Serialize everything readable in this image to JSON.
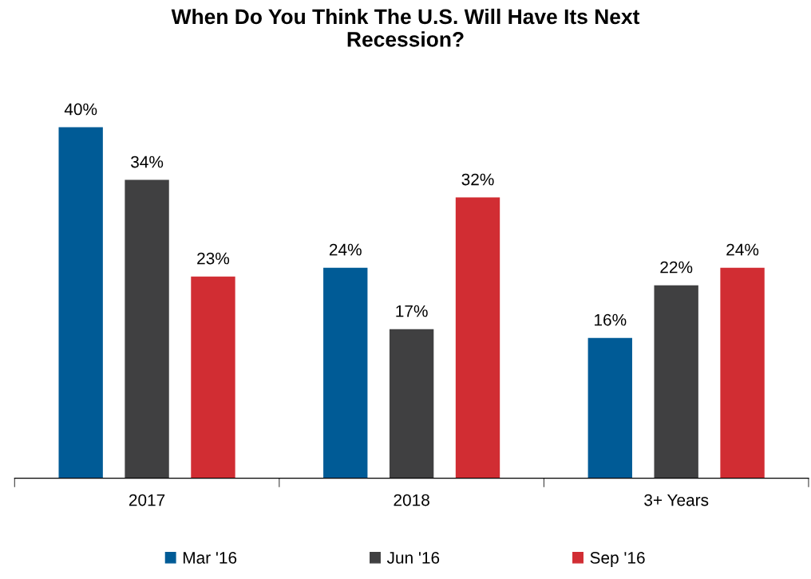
{
  "chart_data": {
    "type": "bar",
    "title": "When Do You Think The U.S. Will Have Its Next Recession?",
    "categories": [
      "2017",
      "2018",
      "3+ Years"
    ],
    "series": [
      {
        "name": "Mar '16",
        "color": "#005b96",
        "values": [
          40,
          24,
          16
        ],
        "value_labels": [
          "40%",
          "24%",
          "16%"
        ]
      },
      {
        "name": "Jun '16",
        "color": "#404041",
        "values": [
          34,
          17,
          22
        ],
        "value_labels": [
          "34%",
          "17%",
          "22%"
        ]
      },
      {
        "name": "Sep '16",
        "color": "#d12d33",
        "values": [
          23,
          32,
          24
        ],
        "value_labels": [
          "23%",
          "32%",
          "24%"
        ]
      }
    ],
    "legend": "bottom",
    "grid": false,
    "tick_labels": "x"
  }
}
